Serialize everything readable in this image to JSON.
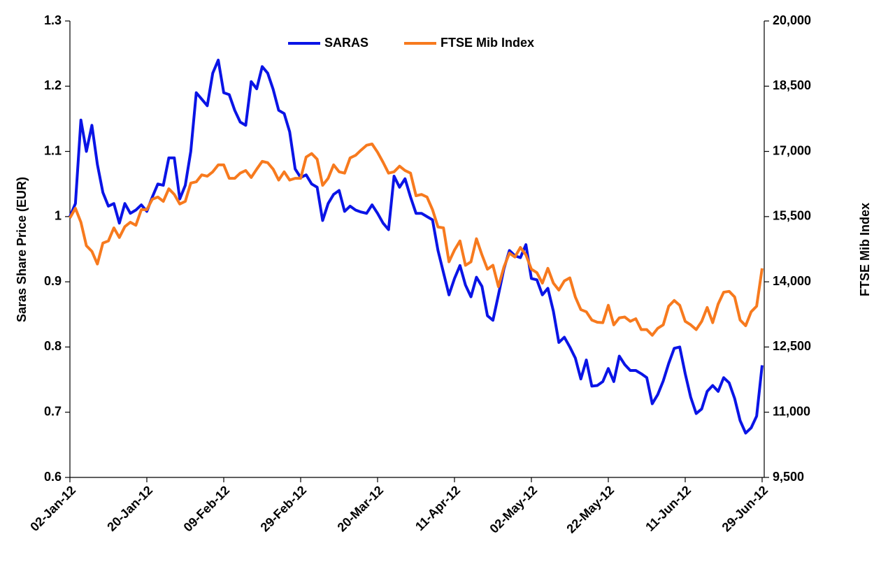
{
  "chart_data": {
    "type": "line",
    "categories": [
      "02-Jan-12",
      null,
      null,
      null,
      null,
      null,
      null,
      null,
      null,
      null,
      null,
      null,
      null,
      null,
      "20-Jan-12",
      null,
      null,
      null,
      null,
      null,
      null,
      null,
      null,
      null,
      null,
      null,
      null,
      null,
      "09-Feb-12",
      null,
      null,
      null,
      null,
      null,
      null,
      null,
      null,
      null,
      null,
      null,
      null,
      null,
      "29-Feb-12",
      null,
      null,
      null,
      null,
      null,
      null,
      null,
      null,
      null,
      null,
      null,
      null,
      null,
      "20-Mar-12",
      null,
      null,
      null,
      null,
      null,
      null,
      null,
      null,
      null,
      null,
      null,
      null,
      null,
      "11-Apr-12",
      null,
      null,
      null,
      null,
      null,
      null,
      null,
      null,
      null,
      null,
      null,
      null,
      null,
      "02-May-12",
      null,
      null,
      null,
      null,
      null,
      null,
      null,
      null,
      null,
      null,
      null,
      null,
      null,
      "22-May-12",
      null,
      null,
      null,
      null,
      null,
      null,
      null,
      null,
      null,
      null,
      null,
      null,
      null,
      "11-Jun-12",
      null,
      null,
      null,
      null,
      null,
      null,
      null,
      null,
      null,
      null,
      null,
      null,
      null,
      "29-Jun-12"
    ],
    "series": [
      {
        "name": "SARAS",
        "color": "#0a14e6",
        "values": [
          1.0,
          1.02,
          1.148,
          1.1,
          1.14,
          1.08,
          1.037,
          1.016,
          1.02,
          0.99,
          1.02,
          1.005,
          1.01,
          1.018,
          1.008,
          1.03,
          1.05,
          1.048,
          1.09,
          1.09,
          1.027,
          1.048,
          1.1,
          1.19,
          1.18,
          1.17,
          1.22,
          1.24,
          1.19,
          1.187,
          1.163,
          1.145,
          1.14,
          1.207,
          1.196,
          1.23,
          1.22,
          1.195,
          1.163,
          1.158,
          1.13,
          1.073,
          1.06,
          1.064,
          1.05,
          1.045,
          0.994,
          1.02,
          1.034,
          1.04,
          1.008,
          1.016,
          1.01,
          1.007,
          1.005,
          1.018,
          1.005,
          0.99,
          0.98,
          1.062,
          1.045,
          1.058,
          1.03,
          1.005,
          1.005,
          1.0,
          0.995,
          0.948,
          0.914,
          0.88,
          0.905,
          0.925,
          0.895,
          0.877,
          0.907,
          0.893,
          0.848,
          0.841,
          0.88,
          0.92,
          0.948,
          0.94,
          0.937,
          0.957,
          0.905,
          0.903,
          0.88,
          0.89,
          0.855,
          0.807,
          0.815,
          0.8,
          0.783,
          0.751,
          0.78,
          0.74,
          0.741,
          0.747,
          0.767,
          0.747,
          0.786,
          0.773,
          0.764,
          0.764,
          0.759,
          0.753,
          0.713,
          0.727,
          0.748,
          0.775,
          0.798,
          0.8,
          0.759,
          0.723,
          0.698,
          0.705,
          0.732,
          0.741,
          0.732,
          0.753,
          0.745,
          0.721,
          0.687,
          0.668,
          0.676,
          0.694,
          0.772
        ]
      },
      {
        "name": "FTSE Mib Index",
        "color": "#f77a1e",
        "axis": "y2",
        "values": [
          15470,
          15690,
          15370,
          14830,
          14700,
          14410,
          14890,
          14940,
          15240,
          15020,
          15270,
          15370,
          15300,
          15660,
          15660,
          15900,
          15950,
          15850,
          16140,
          16010,
          15790,
          15850,
          16270,
          16300,
          16460,
          16430,
          16530,
          16690,
          16690,
          16380,
          16380,
          16500,
          16560,
          16400,
          16590,
          16770,
          16740,
          16590,
          16340,
          16530,
          16340,
          16380,
          16380,
          16870,
          16950,
          16820,
          16220,
          16380,
          16690,
          16530,
          16500,
          16850,
          16910,
          17030,
          17140,
          17170,
          16980,
          16750,
          16500,
          16530,
          16660,
          16560,
          16500,
          15980,
          16010,
          15950,
          15660,
          15260,
          15240,
          14460,
          14730,
          14940,
          14380,
          14460,
          14990,
          14620,
          14290,
          14380,
          13890,
          14340,
          14660,
          14570,
          14790,
          14620,
          14290,
          14210,
          13970,
          14310,
          13970,
          13810,
          14020,
          14090,
          13650,
          13360,
          13310,
          13120,
          13070,
          13060,
          13460,
          13010,
          13170,
          13190,
          13090,
          13150,
          12900,
          12900,
          12770,
          12930,
          13010,
          13440,
          13570,
          13460,
          13090,
          13010,
          12900,
          13090,
          13410,
          13060,
          13490,
          13760,
          13780,
          13650,
          13120,
          12990,
          13310,
          13440,
          14310
        ]
      }
    ],
    "y_label": "Saras Share Price (EUR)",
    "y2_label": "FTSE Mib Index",
    "ylim": [
      0.6,
      1.3
    ],
    "yticks": [
      0.6,
      0.7,
      0.8,
      0.9,
      1,
      1.1,
      1.2,
      1.3
    ],
    "y2lim": [
      9500,
      20000
    ],
    "y2ticks": [
      {
        "value": 9500,
        "label": "9,500"
      },
      {
        "value": 11000,
        "label": "11,000"
      },
      {
        "value": 12500,
        "label": "12,500"
      },
      {
        "value": 14000,
        "label": "14,000"
      },
      {
        "value": 15500,
        "label": "15,500"
      },
      {
        "value": 17000,
        "label": "17,000"
      },
      {
        "value": 18500,
        "label": "18,500"
      },
      {
        "value": 20000,
        "label": "20,000"
      }
    ],
    "legend": "top"
  }
}
